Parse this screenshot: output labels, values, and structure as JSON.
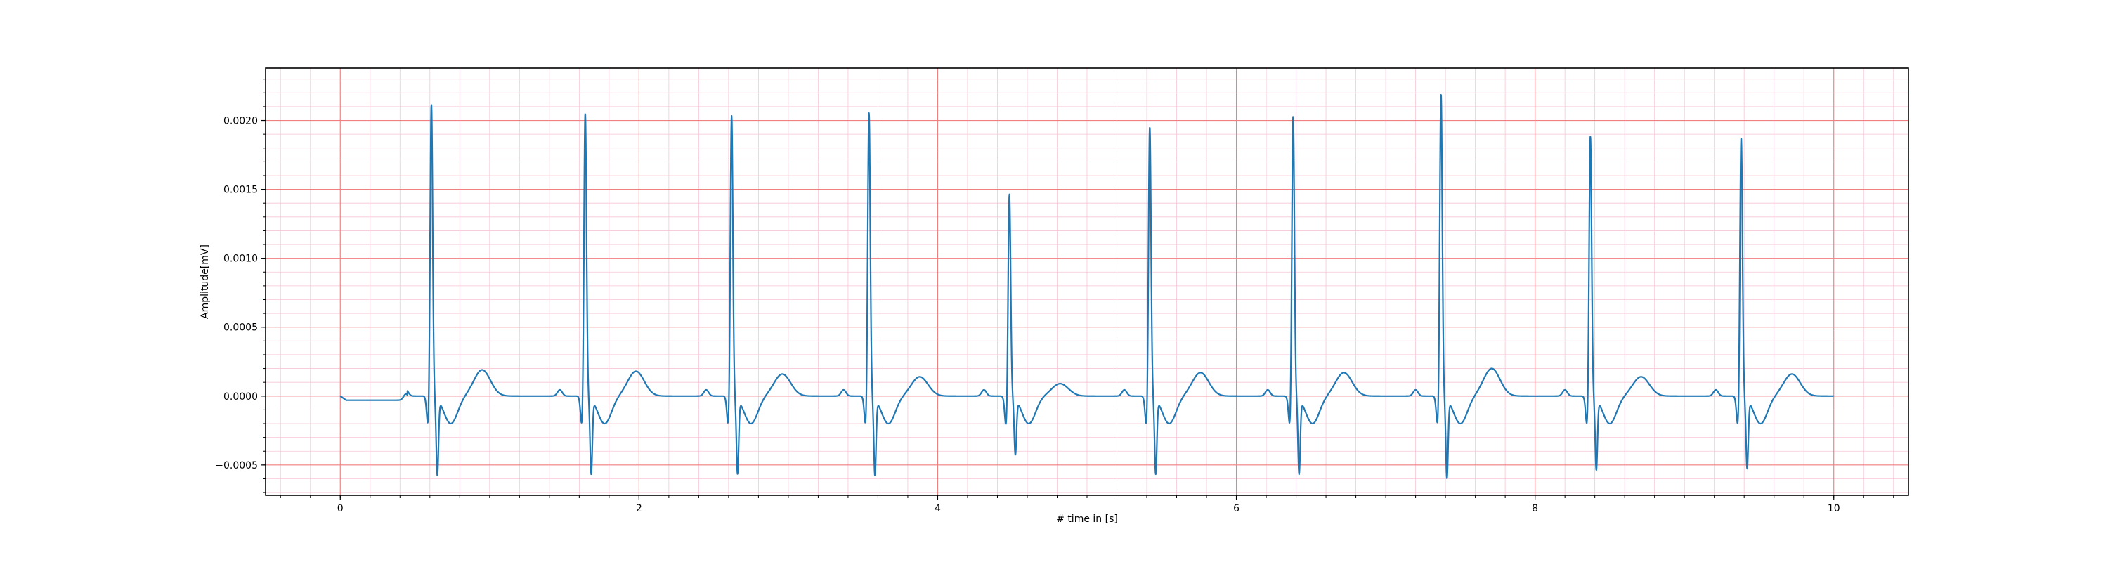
{
  "chart_data": {
    "type": "line",
    "title": "",
    "xlabel": "# time in [s]",
    "ylabel": "Amplitude[mV]",
    "xlim": [
      -0.5,
      10.5
    ],
    "ylim": [
      -0.00072,
      0.00238
    ],
    "x_ticks": [
      0,
      2,
      4,
      6,
      8,
      10
    ],
    "x_tick_labels": [
      "0",
      "2",
      "4",
      "6",
      "8",
      "10"
    ],
    "y_ticks": [
      -0.0005,
      0.0,
      0.0005,
      0.001,
      0.0015,
      0.002
    ],
    "y_tick_labels": [
      "−0.0005",
      "0.0000",
      "0.0005",
      "0.0010",
      "0.0015",
      "0.0020"
    ],
    "grid": true,
    "minor_grid": true,
    "colors": {
      "line": "#1f77b4",
      "major_grid": "#f08080",
      "minor_grid": "#f7c6d4",
      "axes": "#000000",
      "background": "#ffffff"
    },
    "series": [
      {
        "beats": [
          {
            "r_time": 0.61,
            "r_peak": 0.00215,
            "s_min": -0.00055,
            "t_peak": 0.00019
          },
          {
            "r_time": 1.64,
            "r_peak": 0.00209,
            "s_min": -0.00054,
            "t_peak": 0.00018
          },
          {
            "r_time": 2.62,
            "r_peak": 0.00207,
            "s_min": -0.00054,
            "t_peak": 0.00016
          },
          {
            "r_time": 3.54,
            "r_peak": 0.00209,
            "s_min": -0.00055,
            "t_peak": 0.00014
          },
          {
            "r_time": 4.48,
            "r_peak": 0.0015,
            "s_min": -0.0004,
            "t_peak": 9e-05
          },
          {
            "r_time": 5.42,
            "r_peak": 0.00199,
            "s_min": -0.00054,
            "t_peak": 0.00017
          },
          {
            "r_time": 6.38,
            "r_peak": 0.00207,
            "s_min": -0.00054,
            "t_peak": 0.00017
          },
          {
            "r_time": 7.37,
            "r_peak": 0.00223,
            "s_min": -0.00057,
            "t_peak": 0.0002
          },
          {
            "r_time": 8.37,
            "r_peak": 0.00192,
            "s_min": -0.00051,
            "t_peak": 0.00014
          },
          {
            "r_time": 9.38,
            "r_peak": 0.00191,
            "s_min": -0.0005,
            "t_peak": 0.00016
          }
        ],
        "x_start": 0.0,
        "x_end": 10.0
      }
    ]
  }
}
